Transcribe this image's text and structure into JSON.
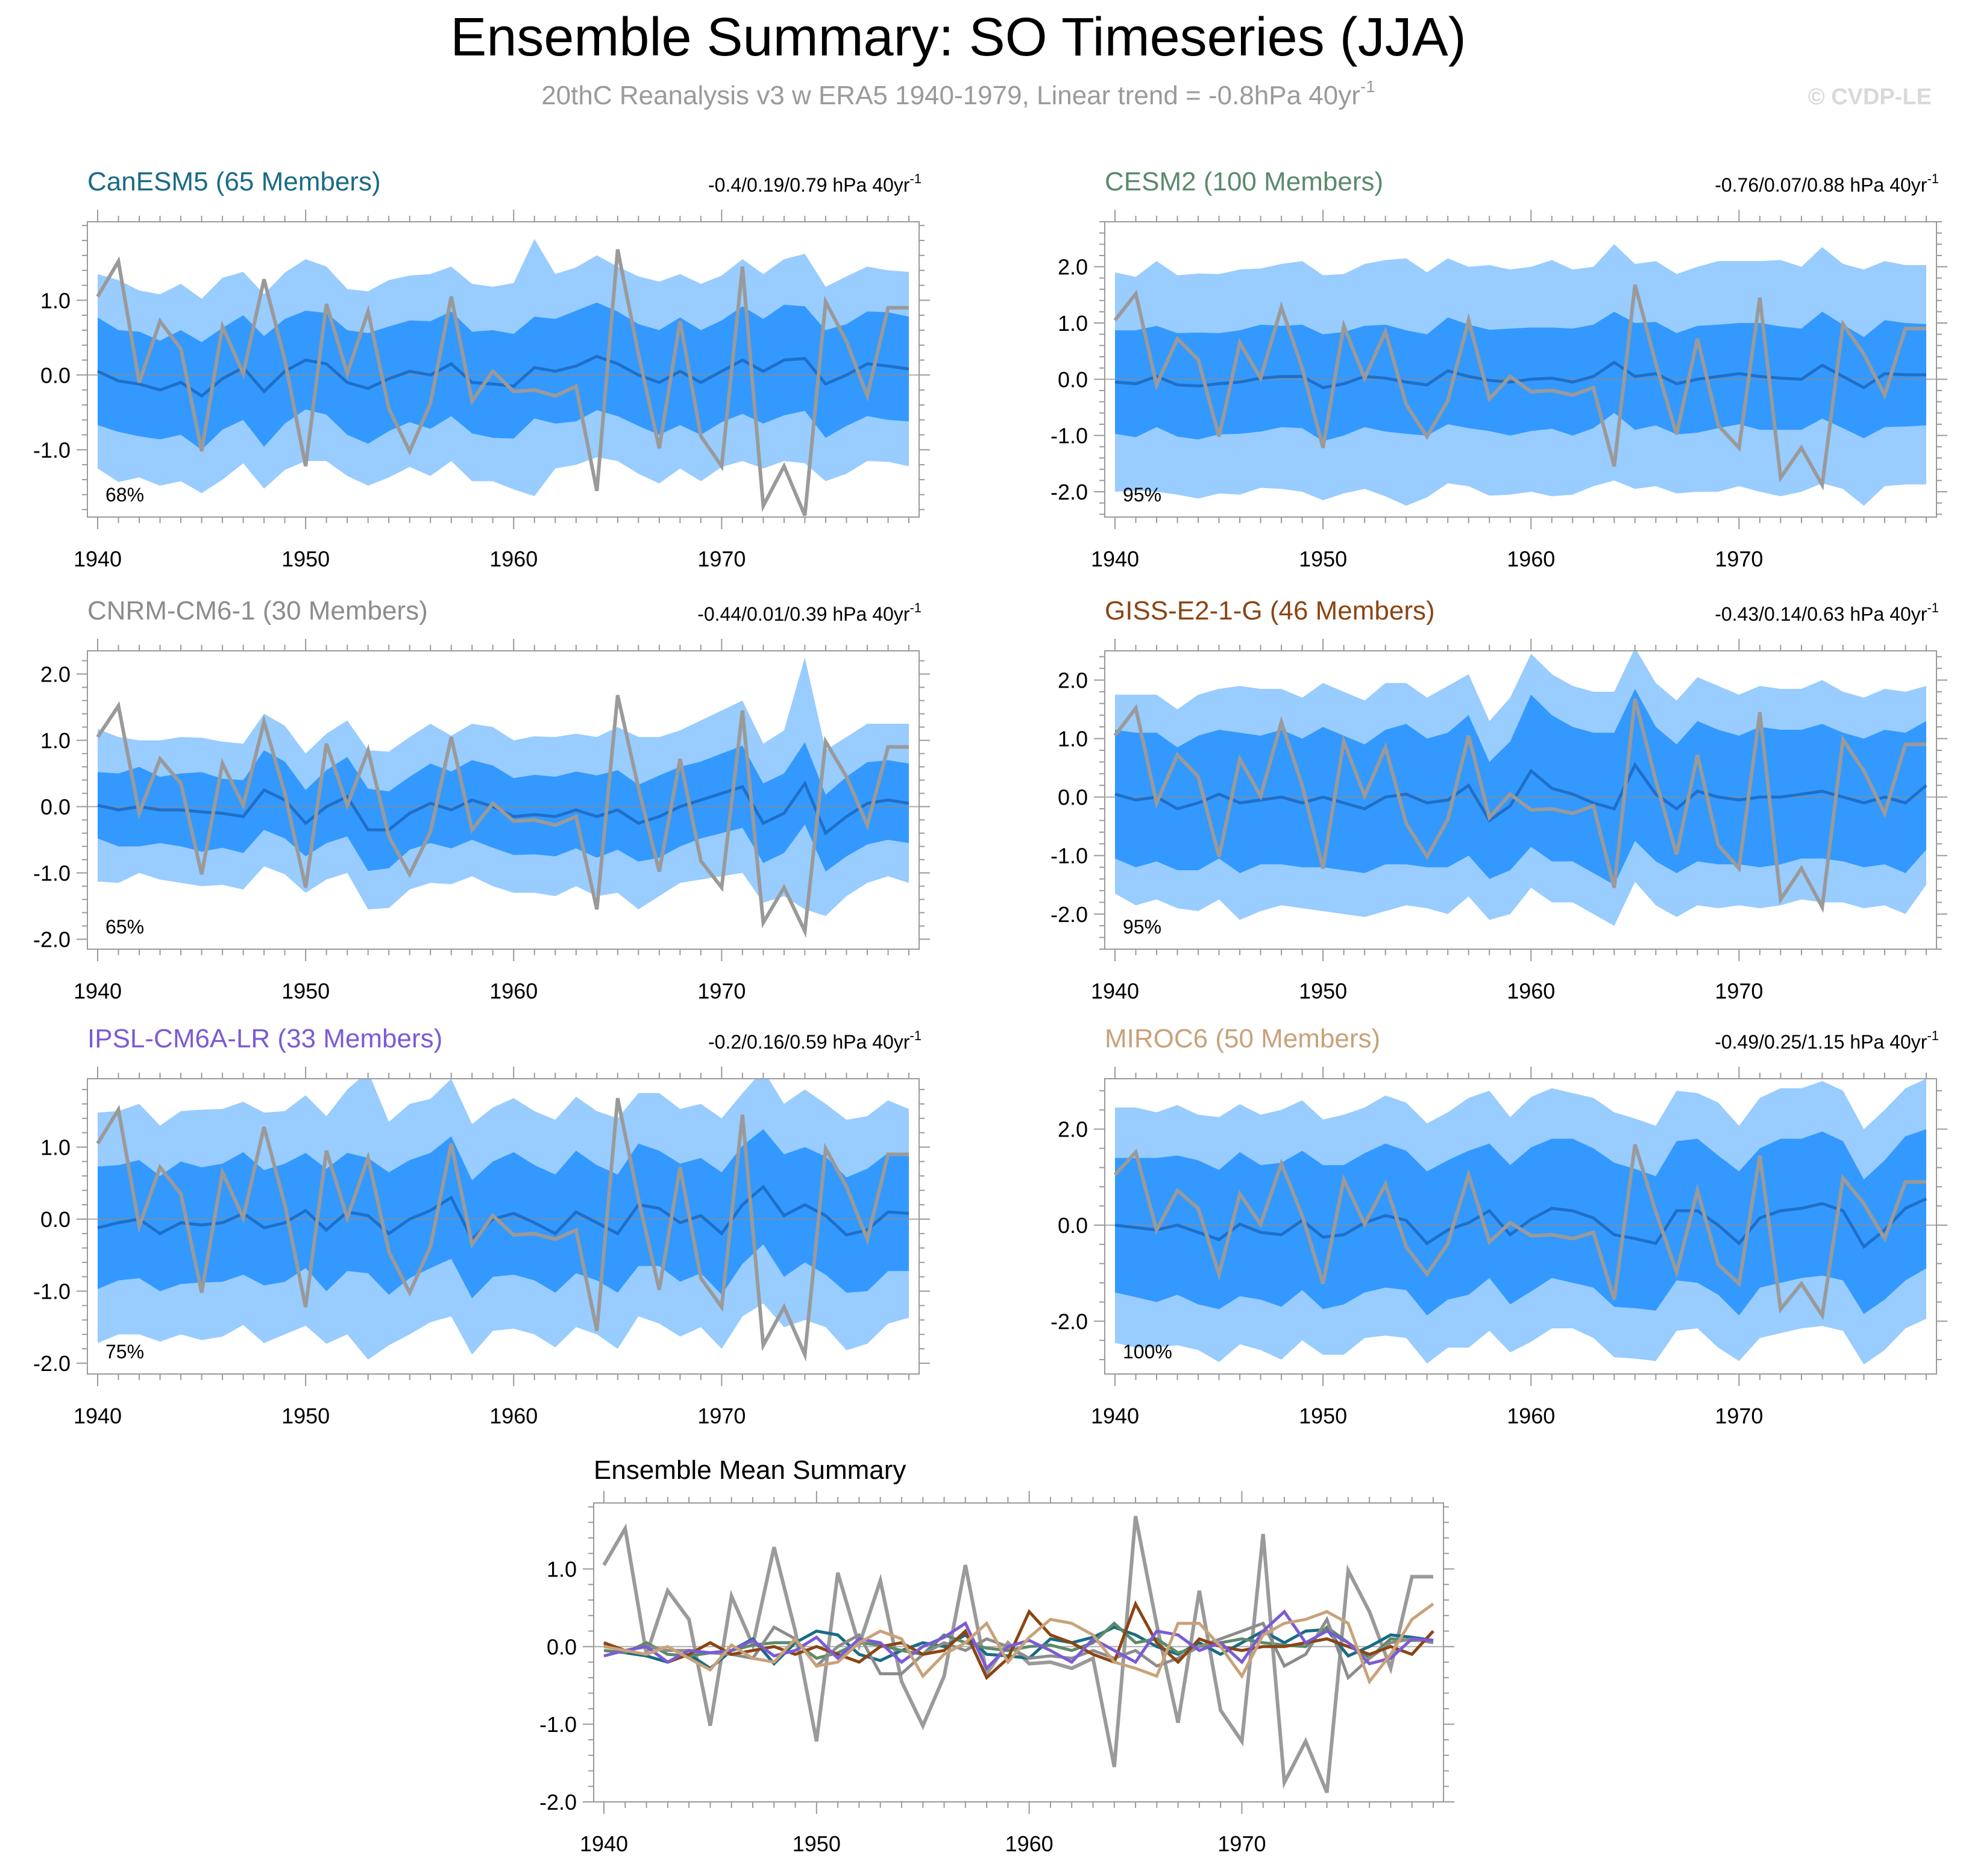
{
  "title": "Ensemble Summary: SO Timeseries (JJA)",
  "subtitle_main": "20thC Reanalysis v3 w ERA5 1940-1979, Linear trend = -0.8hPa 40yr",
  "subtitle_sup": "-1",
  "watermark": "© CVDP-LE",
  "years": [
    1940,
    1941,
    1942,
    1943,
    1944,
    1945,
    1946,
    1947,
    1948,
    1949,
    1950,
    1951,
    1952,
    1953,
    1954,
    1955,
    1956,
    1957,
    1958,
    1959,
    1960,
    1961,
    1962,
    1963,
    1964,
    1965,
    1966,
    1967,
    1968,
    1969,
    1970,
    1971,
    1972,
    1973,
    1974,
    1975,
    1976,
    1977,
    1978,
    1979
  ],
  "observed": {
    "name": "20thC Reanalysis v3 w ERA5",
    "color": "#9a9a9a",
    "values": [
      1.05,
      1.52,
      -0.1,
      0.72,
      0.35,
      -1.02,
      0.65,
      0.02,
      1.28,
      0.2,
      -1.22,
      0.95,
      0.02,
      0.85,
      -0.45,
      -1.02,
      -0.38,
      1.05,
      -0.35,
      0.05,
      -0.22,
      -0.2,
      -0.28,
      -0.15,
      -1.55,
      1.68,
      0.28,
      -0.98,
      0.72,
      -0.82,
      -1.22,
      1.45,
      -1.75,
      -1.22,
      -1.88,
      0.98,
      0.45,
      -0.28,
      0.9,
      0.9
    ]
  },
  "panels": [
    {
      "model": "CanESM5 (65 Members)",
      "color": "#1a6b85",
      "trend_text": "-0.4/0.19/0.79 hPa 40yr",
      "trend_sup": "-1",
      "pct": "68%",
      "ylim": [
        -1.9,
        2.05
      ],
      "yticks": [
        "1.0",
        "0.0",
        "-1.0"
      ],
      "ytick_values": [
        1,
        0,
        -1
      ],
      "mean": [
        0.05,
        -0.08,
        -0.12,
        -0.2,
        -0.1,
        -0.28,
        -0.05,
        0.1,
        -0.22,
        0.05,
        0.2,
        0.15,
        -0.1,
        -0.18,
        -0.05,
        0.05,
        0.0,
        0.15,
        -0.1,
        -0.12,
        -0.15,
        0.1,
        0.05,
        0.12,
        0.25,
        0.15,
        0.0,
        -0.1,
        0.05,
        -0.1,
        0.05,
        0.2,
        0.05,
        0.2,
        0.22,
        -0.12,
        0.0,
        0.15,
        0.12,
        0.08
      ],
      "inner_hw": [
        0.72,
        0.68,
        0.7,
        0.66,
        0.7,
        0.72,
        0.68,
        0.7,
        0.74,
        0.7,
        0.66,
        0.68,
        0.7,
        0.74,
        0.7,
        0.68,
        0.72,
        0.7,
        0.68,
        0.72,
        0.7,
        0.68,
        0.7,
        0.74,
        0.72,
        0.7,
        0.68,
        0.7,
        0.72,
        0.7,
        0.68,
        0.72,
        0.7,
        0.74,
        0.7,
        0.72,
        0.68,
        0.7,
        0.72,
        0.7
      ],
      "outer_hw": [
        1.3,
        1.35,
        1.25,
        1.28,
        1.32,
        1.3,
        1.35,
        1.28,
        1.3,
        1.32,
        1.35,
        1.3,
        1.25,
        1.3,
        1.32,
        1.28,
        1.35,
        1.3,
        1.32,
        1.3,
        1.38,
        1.72,
        1.3,
        1.32,
        1.35,
        1.3,
        1.32,
        1.35,
        1.3,
        1.32,
        1.28,
        1.35,
        1.3,
        1.35,
        1.4,
        1.3,
        1.32,
        1.3,
        1.28,
        1.3
      ]
    },
    {
      "model": "CESM2 (100 Members)",
      "color": "#5b8a6b",
      "trend_text": "-0.76/0.07/0.88 hPa 40yr",
      "trend_sup": "-1",
      "pct": "95%",
      "ylim": [
        -2.45,
        2.8
      ],
      "yticks": [
        "2.0",
        "1.0",
        "0.0",
        "-1.0",
        "-2.0"
      ],
      "ytick_values": [
        2,
        1,
        0,
        -1,
        -2
      ],
      "mean": [
        -0.05,
        -0.08,
        0.05,
        -0.1,
        -0.12,
        -0.08,
        -0.05,
        0.02,
        0.05,
        0.05,
        -0.15,
        -0.08,
        0.05,
        0.02,
        -0.05,
        -0.1,
        0.15,
        0.05,
        -0.02,
        -0.05,
        0.0,
        0.02,
        -0.05,
        0.05,
        0.3,
        0.05,
        0.1,
        -0.08,
        0.0,
        0.05,
        0.1,
        0.05,
        0.02,
        0.0,
        0.25,
        0.05,
        -0.15,
        0.1,
        0.08,
        0.08
      ],
      "inner_hw": [
        0.92,
        0.95,
        0.9,
        0.92,
        0.95,
        0.9,
        0.92,
        0.95,
        0.9,
        0.92,
        0.95,
        0.92,
        0.9,
        0.95,
        0.92,
        0.9,
        0.95,
        0.92,
        0.9,
        0.95,
        0.92,
        0.9,
        0.95,
        0.92,
        0.9,
        0.95,
        0.92,
        0.9,
        0.95,
        0.92,
        0.9,
        0.95,
        0.92,
        0.9,
        0.95,
        0.92,
        0.9,
        0.95,
        0.92,
        0.9
      ],
      "outer_hw": [
        1.95,
        1.9,
        2.05,
        1.95,
        2.0,
        1.95,
        2.0,
        1.95,
        2.0,
        2.05,
        2.0,
        1.95,
        2.0,
        2.1,
        2.2,
        2.0,
        2.0,
        1.95,
        2.05,
        2.0,
        2.0,
        2.1,
        2.0,
        1.95,
        2.1,
        2.0,
        2.0,
        1.95,
        2.0,
        2.05,
        2.0,
        2.05,
        2.1,
        2.0,
        2.1,
        2.0,
        2.1,
        2.0,
        1.95,
        1.95
      ]
    },
    {
      "model": "CNRM-CM6-1 (30 Members)",
      "color": "#8c8c8c",
      "trend_text": "-0.44/0.01/0.39 hPa 40yr",
      "trend_sup": "-1",
      "pct": "65%",
      "ylim": [
        -2.15,
        2.35
      ],
      "yticks": [
        "2.0",
        "1.0",
        "0.0",
        "-1.0",
        "-2.0"
      ],
      "ytick_values": [
        2,
        1,
        0,
        -1,
        -2
      ],
      "mean": [
        0.02,
        -0.05,
        0.0,
        -0.05,
        -0.05,
        -0.08,
        -0.1,
        -0.15,
        0.25,
        0.1,
        -0.25,
        0.0,
        0.15,
        -0.35,
        -0.35,
        -0.1,
        0.05,
        -0.05,
        0.1,
        0.0,
        -0.15,
        -0.12,
        -0.15,
        -0.05,
        -0.15,
        -0.05,
        -0.25,
        -0.15,
        0.0,
        0.1,
        0.2,
        0.3,
        -0.25,
        -0.1,
        0.35,
        -0.4,
        -0.15,
        0.05,
        0.1,
        0.05
      ],
      "inner_hw": [
        0.5,
        0.55,
        0.6,
        0.5,
        0.55,
        0.6,
        0.52,
        0.55,
        0.6,
        0.58,
        0.5,
        0.55,
        0.6,
        0.62,
        0.58,
        0.55,
        0.6,
        0.58,
        0.6,
        0.62,
        0.58,
        0.6,
        0.6,
        0.58,
        0.62,
        0.6,
        0.58,
        0.62,
        0.6,
        0.58,
        0.6,
        0.62,
        0.6,
        0.6,
        0.62,
        0.58,
        0.6,
        0.62,
        0.6,
        0.6
      ],
      "outer_hw": [
        1.15,
        1.1,
        1.0,
        1.05,
        1.1,
        1.12,
        1.08,
        1.1,
        1.15,
        1.12,
        1.05,
        1.1,
        1.15,
        1.2,
        1.18,
        1.15,
        1.2,
        1.12,
        1.15,
        1.2,
        1.15,
        1.18,
        1.2,
        1.15,
        1.2,
        1.25,
        1.3,
        1.2,
        1.15,
        1.2,
        1.25,
        1.3,
        1.2,
        1.25,
        1.9,
        1.25,
        1.2,
        1.2,
        1.15,
        1.2
      ]
    },
    {
      "model": "GISS-E2-1-G (46 Members)",
      "color": "#8b4513",
      "trend_text": "-0.43/0.14/0.63 hPa 40yr",
      "trend_sup": "-1",
      "pct": "95%",
      "ylim": [
        -2.6,
        2.5
      ],
      "yticks": [
        "2.0",
        "1.0",
        "0.0",
        "-1.0",
        "-2.0"
      ],
      "ytick_values": [
        2,
        1,
        0,
        -1,
        -2
      ],
      "mean": [
        0.05,
        -0.05,
        0.0,
        -0.2,
        -0.1,
        0.05,
        -0.1,
        -0.05,
        0.0,
        -0.1,
        0.0,
        -0.1,
        -0.2,
        0.0,
        0.05,
        -0.1,
        -0.05,
        0.2,
        -0.4,
        -0.15,
        0.45,
        0.15,
        0.05,
        -0.1,
        -0.2,
        0.55,
        0.05,
        -0.2,
        0.1,
        0.0,
        -0.05,
        0.0,
        0.0,
        0.05,
        0.1,
        0.0,
        -0.1,
        0.0,
        -0.1,
        0.2
      ],
      "inner_hw": [
        1.1,
        1.15,
        1.1,
        1.05,
        1.15,
        1.1,
        1.2,
        1.1,
        1.15,
        1.1,
        1.2,
        1.15,
        1.1,
        1.15,
        1.2,
        1.1,
        1.15,
        1.2,
        1.0,
        1.1,
        1.3,
        1.25,
        1.15,
        1.2,
        1.3,
        1.3,
        1.15,
        1.1,
        1.2,
        1.15,
        1.1,
        1.2,
        1.15,
        1.1,
        1.15,
        1.1,
        1.1,
        1.15,
        1.2,
        1.1
      ],
      "outer_hw": [
        1.7,
        1.8,
        1.75,
        1.7,
        1.85,
        1.8,
        2.0,
        1.9,
        1.85,
        1.8,
        1.95,
        1.9,
        1.85,
        1.95,
        1.9,
        1.8,
        1.95,
        1.9,
        1.7,
        1.85,
        2.0,
        1.95,
        1.85,
        1.9,
        2.0,
        2.0,
        1.9,
        1.85,
        1.95,
        1.9,
        1.8,
        1.9,
        1.85,
        1.8,
        1.9,
        1.8,
        1.8,
        1.85,
        1.9,
        1.7
      ]
    },
    {
      "model": "IPSL-CM6A-LR (33 Members)",
      "color": "#7b5bd6",
      "trend_text": "-0.2/0.16/0.59 hPa 40yr",
      "trend_sup": "-1",
      "pct": "75%",
      "ylim": [
        -2.15,
        1.95
      ],
      "yticks": [
        "1.0",
        "0.0",
        "-1.0",
        "-2.0"
      ],
      "ytick_values": [
        1,
        0,
        -1,
        -2
      ],
      "mean": [
        -0.12,
        -0.05,
        0.0,
        -0.2,
        -0.05,
        -0.08,
        -0.05,
        0.08,
        -0.12,
        -0.05,
        0.12,
        -0.15,
        0.1,
        0.05,
        -0.2,
        0.0,
        0.12,
        0.3,
        -0.28,
        0.0,
        0.08,
        -0.05,
        -0.2,
        0.1,
        -0.05,
        -0.2,
        0.2,
        0.15,
        -0.05,
        0.05,
        -0.2,
        0.2,
        0.45,
        0.05,
        0.2,
        0.05,
        -0.22,
        -0.15,
        0.1,
        0.08
      ],
      "inner_hw": [
        0.85,
        0.8,
        0.82,
        0.8,
        0.85,
        0.8,
        0.82,
        0.85,
        0.8,
        0.82,
        0.8,
        0.85,
        0.82,
        0.8,
        0.85,
        0.82,
        0.8,
        0.85,
        0.82,
        0.8,
        0.85,
        0.8,
        0.82,
        0.85,
        0.8,
        0.82,
        0.85,
        0.8,
        0.82,
        0.8,
        0.85,
        0.82,
        0.8,
        0.85,
        0.8,
        0.82,
        0.8,
        0.85,
        0.82,
        0.8
      ],
      "outer_hw": [
        1.6,
        1.55,
        1.6,
        1.5,
        1.55,
        1.6,
        1.58,
        1.55,
        1.6,
        1.55,
        1.6,
        1.58,
        1.7,
        2.0,
        1.55,
        1.6,
        1.55,
        1.65,
        1.6,
        1.55,
        1.6,
        1.55,
        1.58,
        1.6,
        1.55,
        1.6,
        1.55,
        1.6,
        1.58,
        1.55,
        1.6,
        1.55,
        1.62,
        1.55,
        1.6,
        1.55,
        1.6,
        1.58,
        1.55,
        1.45
      ]
    },
    {
      "model": "MIROC6 (50 Members)",
      "color": "#c8a27a",
      "trend_text": "-0.49/0.25/1.15 hPa 40yr",
      "trend_sup": "-1",
      "pct": "100%",
      "ylim": [
        -3.1,
        3.05
      ],
      "yticks": [
        "2.0",
        "0.0",
        "-2.0"
      ],
      "ytick_values": [
        2,
        0,
        -2
      ],
      "mean": [
        0.0,
        -0.05,
        -0.1,
        0.0,
        -0.15,
        -0.3,
        0.02,
        -0.15,
        -0.2,
        0.1,
        -0.25,
        -0.2,
        0.05,
        0.2,
        0.1,
        -0.38,
        -0.1,
        0.05,
        0.3,
        -0.2,
        0.12,
        0.35,
        0.3,
        0.15,
        -0.2,
        -0.28,
        -0.38,
        0.3,
        0.3,
        0.0,
        -0.38,
        0.15,
        0.3,
        0.35,
        0.45,
        0.3,
        -0.45,
        -0.1,
        0.35,
        0.55
      ],
      "inner_hw": [
        1.4,
        1.45,
        1.5,
        1.45,
        1.5,
        1.45,
        1.5,
        1.4,
        1.5,
        1.45,
        1.5,
        1.45,
        1.45,
        1.5,
        1.45,
        1.5,
        1.45,
        1.5,
        1.4,
        1.45,
        1.5,
        1.45,
        1.5,
        1.45,
        1.5,
        1.45,
        1.4,
        1.45,
        1.5,
        1.45,
        1.5,
        1.45,
        1.5,
        1.45,
        1.5,
        1.45,
        1.4,
        1.45,
        1.5,
        1.45
      ],
      "outer_hw": [
        2.45,
        2.5,
        2.45,
        2.5,
        2.45,
        2.55,
        2.5,
        2.45,
        2.6,
        2.5,
        2.45,
        2.5,
        2.4,
        2.5,
        2.45,
        2.5,
        2.45,
        2.6,
        2.5,
        2.45,
        2.55,
        2.5,
        2.45,
        2.5,
        2.55,
        2.5,
        2.45,
        2.5,
        2.45,
        2.55,
        2.45,
        2.5,
        2.55,
        2.5,
        2.55,
        2.5,
        2.45,
        2.5,
        2.5,
        2.5
      ]
    }
  ],
  "summary": {
    "title": "Ensemble Mean Summary",
    "ylim": [
      -2.0,
      1.85
    ],
    "yticks": [
      "1.0",
      "0.0",
      "-1.0",
      "-2.0"
    ],
    "ytick_values": [
      1,
      0,
      -1,
      -2
    ]
  },
  "x_ticks": [
    "1940",
    "1950",
    "1960",
    "1970"
  ],
  "x_tick_values": [
    1940,
    1950,
    1960,
    1970
  ],
  "colors": {
    "outer_band": "#99ccff",
    "inner_band": "#3399ff",
    "ensemble_mean": "#1f6fc8",
    "zero_line": "#8c8c8c",
    "watermark": "#d9d9d9",
    "subtitle": "#9a9a9a",
    "frame": "#9a9a9a"
  }
}
